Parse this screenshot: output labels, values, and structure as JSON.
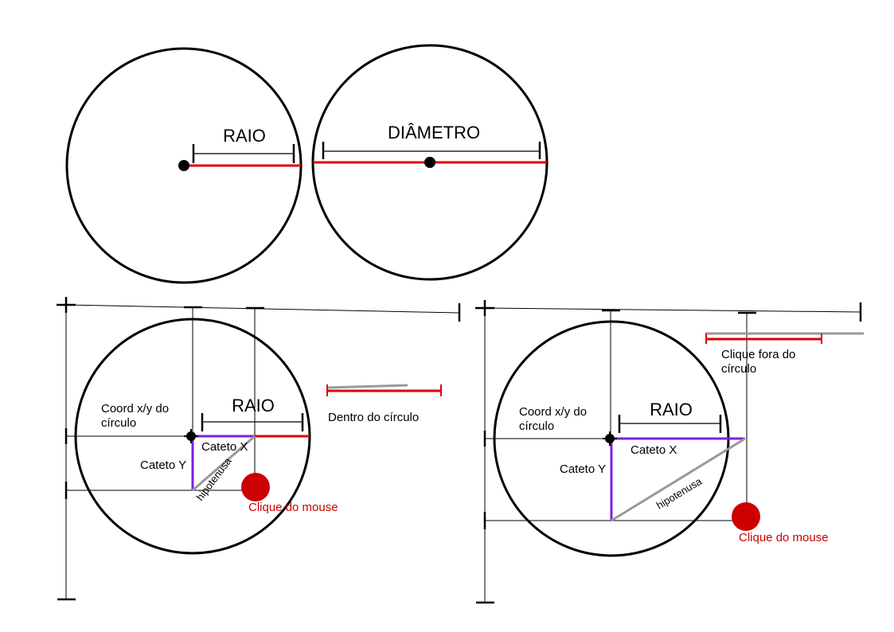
{
  "colors": {
    "circle_outline": "#000000",
    "radius_line": "#e00000",
    "cathetus": "#7a1fe6",
    "hypotenuse": "#999999",
    "mouse_click": "#cc0000",
    "guide_line": "#000000"
  },
  "top_left": {
    "radius_label": "RAIO"
  },
  "top_right": {
    "diameter_label": "DIÂMETRO"
  },
  "bottom_left": {
    "coord_label_line1": "Coord x/y do",
    "coord_label_line2": "círculo",
    "radius_label": "RAIO",
    "cathetus_x_label": "Cateto X",
    "cathetus_y_label": "Cateto Y",
    "hypotenuse_label": "hipotenusa",
    "mouse_label": "Clique do mouse",
    "comparison_label": "Dentro do círculo"
  },
  "bottom_right": {
    "coord_label_line1": "Coord x/y do",
    "coord_label_line2": "círculo",
    "radius_label": "RAIO",
    "cathetus_x_label": "Cateto X",
    "cathetus_y_label": "Cateto Y",
    "hypotenuse_label": "hipotenusa",
    "mouse_label": "Clique do mouse",
    "comparison_label_line1": "Clique fora do",
    "comparison_label_line2": "círculo"
  }
}
